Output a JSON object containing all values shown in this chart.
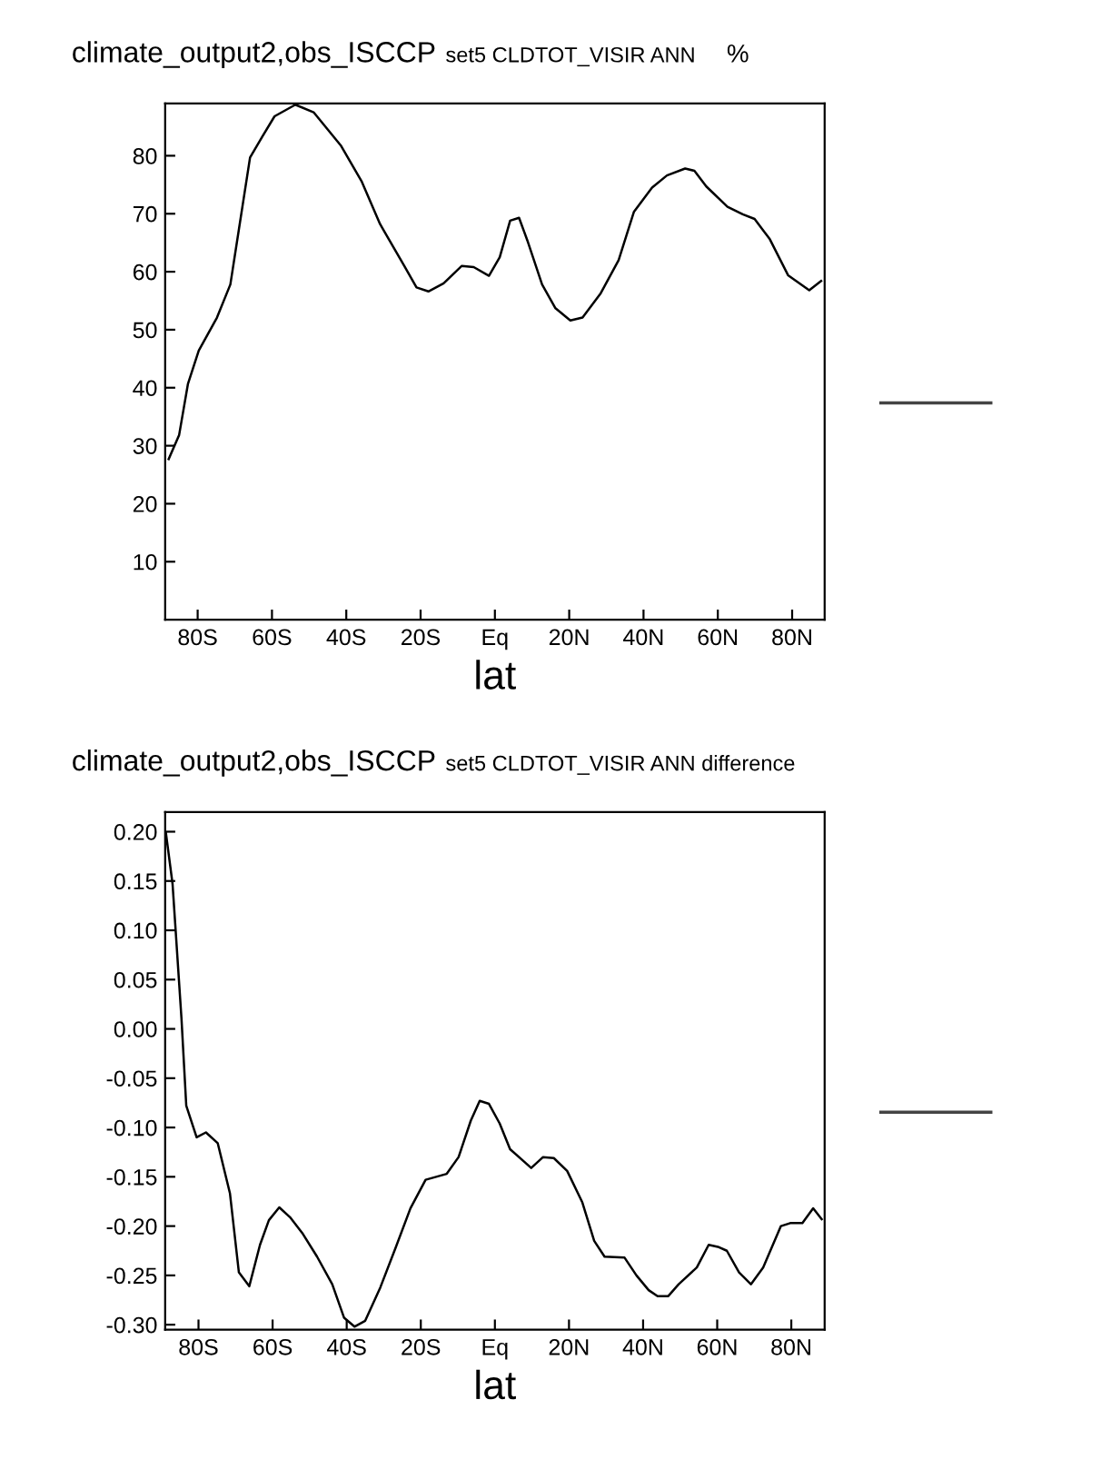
{
  "chart_data": [
    {
      "type": "line",
      "title": "climate_output2,obs_ISCCP",
      "subtitle": "set5 CLDTOT_VISIR ANN",
      "annotations": [
        "%"
      ],
      "xlabel": "lat",
      "grid": false,
      "legend": false,
      "xlim": [
        -88.75,
        88.75
      ],
      "ylim": [
        0,
        89
      ],
      "xticks": [
        {
          "value": -80,
          "label": "80S"
        },
        {
          "value": -60,
          "label": "60S"
        },
        {
          "value": -40,
          "label": "40S"
        },
        {
          "value": -20,
          "label": "20S"
        },
        {
          "value": 0,
          "label": "Eq"
        },
        {
          "value": 20,
          "label": "20N"
        },
        {
          "value": 40,
          "label": "40N"
        },
        {
          "value": 60,
          "label": "60N"
        },
        {
          "value": 80,
          "label": "80N"
        }
      ],
      "yticks": [
        10,
        20,
        30,
        40,
        50,
        60,
        70,
        80
      ],
      "series": [
        {
          "color": "#000000",
          "x": [
            -87.8,
            -85.0,
            -82.6,
            -79.7,
            -74.8,
            -71.2,
            -65.9,
            -62.6,
            -59.3,
            -53.7,
            -48.8,
            -41.5,
            -35.8,
            -30.9,
            -24.4,
            -21.1,
            -17.9,
            -13.8,
            -8.9,
            -5.7,
            -1.6,
            1.3,
            4.1,
            6.5,
            8.9,
            12.7,
            16.3,
            20.3,
            23.6,
            28.5,
            33.3,
            37.4,
            42.3,
            46.3,
            51.2,
            53.7,
            56.9,
            62.6,
            66.7,
            69.9,
            74.0,
            78.9,
            84.6,
            87.8
          ],
          "values": [
            27.7,
            31.8,
            40.7,
            46.4,
            52.1,
            57.8,
            79.7,
            83.3,
            86.8,
            88.8,
            87.5,
            81.8,
            75.5,
            68.2,
            61.0,
            57.3,
            56.6,
            58.0,
            61.0,
            60.8,
            59.3,
            62.5,
            68.8,
            69.3,
            65.1,
            57.8,
            53.7,
            51.6,
            52.1,
            56.3,
            62.0,
            70.3,
            74.5,
            76.6,
            77.8,
            77.4,
            74.7,
            71.2,
            69.9,
            69.1,
            65.6,
            59.4,
            56.8,
            58.4
          ]
        }
      ]
    },
    {
      "type": "line",
      "title": "climate_output2,obs_ISCCP",
      "subtitle": "set5 CLDTOT_VISIR ANN difference",
      "xlabel": "lat",
      "grid": false,
      "legend": false,
      "xlim": [
        -89,
        89
      ],
      "ylim": [
        -0.305,
        0.22
      ],
      "xticks": [
        {
          "value": -80,
          "label": "80S"
        },
        {
          "value": -60,
          "label": "60S"
        },
        {
          "value": -40,
          "label": "40S"
        },
        {
          "value": -20,
          "label": "20S"
        },
        {
          "value": 0,
          "label": "Eq"
        },
        {
          "value": 20,
          "label": "20N"
        },
        {
          "value": 40,
          "label": "40N"
        },
        {
          "value": 60,
          "label": "60N"
        },
        {
          "value": 80,
          "label": "80N"
        }
      ],
      "yticks": [
        {
          "value": -0.3,
          "label": "-0.30"
        },
        {
          "value": -0.25,
          "label": "-0.25"
        },
        {
          "value": -0.2,
          "label": "-0.20"
        },
        {
          "value": -0.15,
          "label": "-0.15"
        },
        {
          "value": -0.1,
          "label": "-0.10"
        },
        {
          "value": -0.05,
          "label": "-0.05"
        },
        {
          "value": 0,
          "label": "0.00"
        },
        {
          "value": 0.05,
          "label": "0.05"
        },
        {
          "value": 0.1,
          "label": "0.10"
        },
        {
          "value": 0.15,
          "label": "0.15"
        },
        {
          "value": 0.2,
          "label": "0.20"
        }
      ],
      "series": [
        {
          "color": "#000000",
          "x": [
            -88.8,
            -87.0,
            -84.6,
            -83.3,
            -80.5,
            -78.0,
            -74.8,
            -71.5,
            -69.1,
            -66.3,
            -63.4,
            -61.0,
            -58.2,
            -55.3,
            -52.0,
            -48.0,
            -43.9,
            -40.7,
            -37.9,
            -35.0,
            -30.9,
            -26.8,
            -22.8,
            -18.7,
            -13.0,
            -9.8,
            -6.5,
            -4.1,
            -1.6,
            1.3,
            4.1,
            9.8,
            13.0,
            15.9,
            19.5,
            23.6,
            26.8,
            29.6,
            35.0,
            38.2,
            41.5,
            43.9,
            46.8,
            49.6,
            54.5,
            57.7,
            60.2,
            62.6,
            65.9,
            69.1,
            72.4,
            77.2,
            79.7,
            83.0,
            85.9,
            88.2
          ],
          "values": [
            0.199,
            0.147,
            0.011,
            -0.078,
            -0.11,
            -0.105,
            -0.116,
            -0.167,
            -0.247,
            -0.261,
            -0.219,
            -0.194,
            -0.181,
            -0.191,
            -0.207,
            -0.231,
            -0.259,
            -0.293,
            -0.302,
            -0.296,
            -0.262,
            -0.222,
            -0.182,
            -0.153,
            -0.147,
            -0.13,
            -0.093,
            -0.073,
            -0.076,
            -0.096,
            -0.122,
            -0.141,
            -0.13,
            -0.131,
            -0.144,
            -0.176,
            -0.215,
            -0.231,
            -0.232,
            -0.25,
            -0.265,
            -0.271,
            -0.271,
            -0.259,
            -0.242,
            -0.219,
            -0.221,
            -0.225,
            -0.247,
            -0.259,
            -0.242,
            -0.2,
            -0.197,
            -0.197,
            -0.182,
            -0.193
          ]
        }
      ]
    }
  ]
}
